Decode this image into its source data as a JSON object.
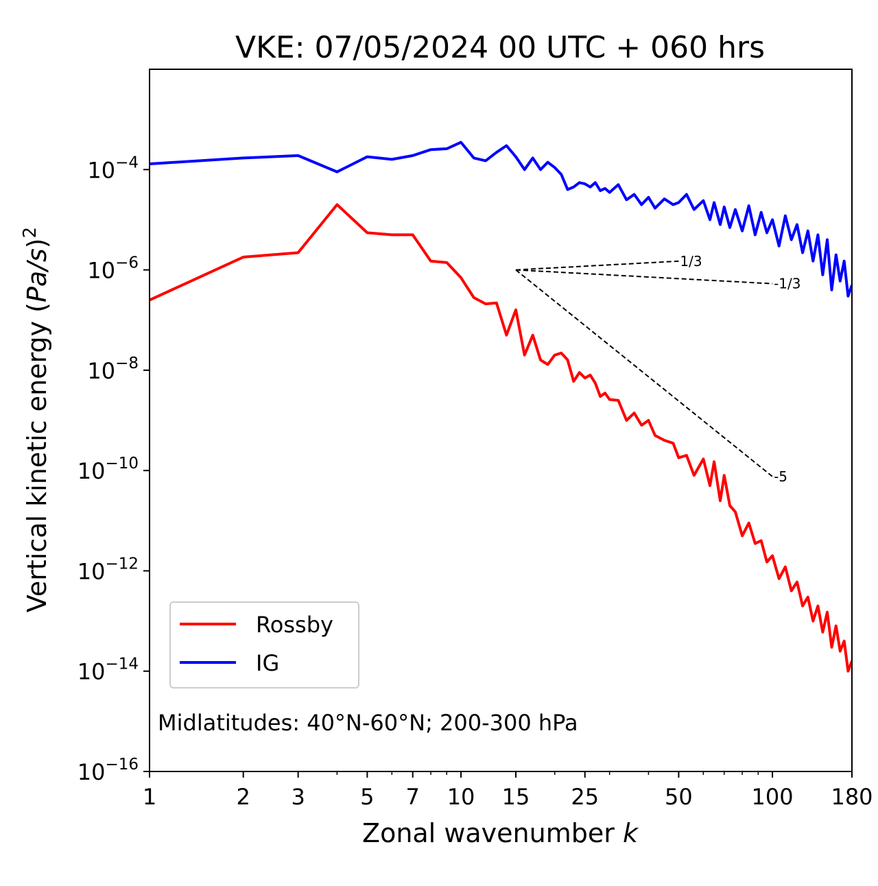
{
  "chart_data": {
    "type": "line",
    "title": "VKE: 07/05/2024 00 UTC + 060 hrs",
    "xlabel": "Zonal wavenumber",
    "xlabel_var": "k",
    "ylabel": "Vertical kinetic energy (Pa/s)^2",
    "x_scale": "log",
    "y_scale": "log",
    "xlim": [
      1,
      180
    ],
    "ylim": [
      1e-16,
      0.01
    ],
    "x_ticks": [
      1,
      2,
      3,
      5,
      7,
      10,
      15,
      25,
      50,
      100,
      180
    ],
    "y_ticks": [
      {
        "exp": -4
      },
      {
        "exp": -6
      },
      {
        "exp": -8
      },
      {
        "exp": -10
      },
      {
        "exp": -12
      },
      {
        "exp": -14
      },
      {
        "exp": -16
      }
    ],
    "legend_position": "lower-left",
    "annotation": "Midlatitudes: 40°N-60°N; 200-300 hPa",
    "series": [
      {
        "name": "Rossby",
        "color": "#ff0000",
        "k": [
          1,
          2,
          3,
          4,
          5,
          6,
          7,
          8,
          9,
          10,
          11,
          12,
          13,
          14,
          15,
          16,
          17,
          18,
          19,
          20,
          21,
          22,
          23,
          24,
          25,
          26,
          27,
          28,
          29,
          30,
          32,
          34,
          36,
          38,
          40,
          42,
          45,
          48,
          50,
          53,
          56,
          60,
          63,
          65,
          68,
          70,
          73,
          76,
          80,
          84,
          88,
          92,
          96,
          100,
          105,
          110,
          115,
          120,
          125,
          130,
          135,
          140,
          145,
          150,
          155,
          160,
          165,
          170,
          175,
          180
        ],
        "values": [
          2.5e-07,
          1.8e-06,
          2.2e-06,
          2e-05,
          5.5e-06,
          5e-06,
          5e-06,
          1.5e-06,
          1.4e-06,
          7e-07,
          2.8e-07,
          2.1e-07,
          2.2e-07,
          5e-08,
          1.6e-07,
          2e-08,
          5e-08,
          1.6e-08,
          1.3e-08,
          2e-08,
          2.2e-08,
          1.6e-08,
          6e-09,
          9e-09,
          7e-09,
          8e-09,
          5.5e-09,
          3e-09,
          3.5e-09,
          2.6e-09,
          2.5e-09,
          1e-09,
          1.4e-09,
          8e-10,
          1e-09,
          5e-10,
          4e-10,
          3.5e-10,
          1.8e-10,
          2e-10,
          8e-11,
          1.7e-10,
          5e-11,
          1.5e-10,
          2.5e-11,
          8e-11,
          2e-11,
          1.5e-11,
          5e-12,
          9e-12,
          3.5e-12,
          4e-12,
          1.5e-12,
          2e-12,
          7e-13,
          1.2e-12,
          4e-13,
          6e-13,
          2e-13,
          3e-13,
          1e-13,
          2e-13,
          6e-14,
          1.5e-13,
          3e-14,
          8e-14,
          2.5e-14,
          4e-14,
          1e-14,
          1.6e-14
        ]
      },
      {
        "name": "IG",
        "color": "#0000ff",
        "k": [
          1,
          2,
          3,
          4,
          5,
          6,
          7,
          8,
          9,
          10,
          11,
          12,
          13,
          14,
          15,
          16,
          17,
          18,
          19,
          20,
          21,
          22,
          23,
          24,
          25,
          26,
          27,
          28,
          29,
          30,
          32,
          34,
          36,
          38,
          40,
          42,
          45,
          48,
          50,
          53,
          56,
          60,
          63,
          65,
          68,
          70,
          73,
          76,
          80,
          84,
          88,
          92,
          96,
          100,
          105,
          110,
          115,
          120,
          125,
          130,
          135,
          140,
          145,
          150,
          155,
          160,
          165,
          170,
          175,
          180
        ],
        "values": [
          0.00013,
          0.00017,
          0.00019,
          9e-05,
          0.00018,
          0.00016,
          0.00019,
          0.00025,
          0.00026,
          0.00035,
          0.00017,
          0.00015,
          0.00022,
          0.0003,
          0.00018,
          0.0001,
          0.00017,
          0.0001,
          0.00014,
          0.00011,
          8e-05,
          4e-05,
          4.5e-05,
          5.5e-05,
          5.2e-05,
          4.5e-05,
          5.5e-05,
          3.8e-05,
          4.2e-05,
          3.5e-05,
          5e-05,
          2.5e-05,
          3.2e-05,
          2e-05,
          2.8e-05,
          1.7e-05,
          2.6e-05,
          2e-05,
          2.2e-05,
          3.2e-05,
          1.6e-05,
          2.4e-05,
          1e-05,
          2.2e-05,
          8e-06,
          1.8e-05,
          7e-06,
          1.6e-05,
          6e-06,
          1.9e-05,
          5e-06,
          1.4e-05,
          5.5e-06,
          1e-05,
          3e-06,
          1.2e-05,
          4e-06,
          8e-06,
          2.2e-06,
          6e-06,
          1.5e-06,
          5e-06,
          8e-07,
          4e-06,
          4e-07,
          2e-06,
          6e-07,
          1.5e-06,
          3e-07,
          5e-07
        ]
      }
    ],
    "reference_lines": [
      {
        "label": "1/3",
        "slope": 0.3333,
        "k0": 15,
        "k1": 50,
        "e0": 1e-06
      },
      {
        "label": "-1/3",
        "slope": -0.3333,
        "k0": 15,
        "k1": 100,
        "e0": 1e-06
      },
      {
        "label": "-5",
        "slope": -5,
        "k0": 15,
        "k1": 100,
        "e0": 1e-06
      }
    ]
  }
}
